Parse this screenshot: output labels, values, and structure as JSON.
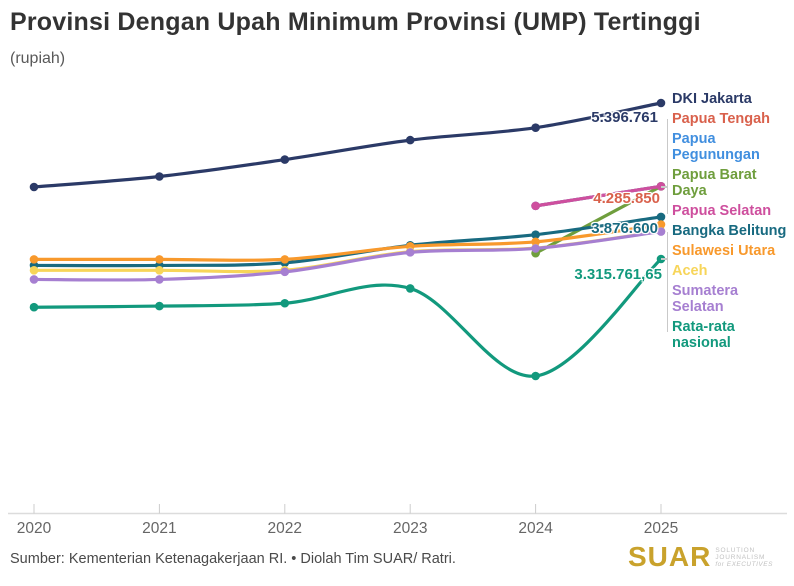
{
  "header": {
    "title": "Provinsi Dengan Upah Minimum Provinsi (UMP) Tertinggi",
    "subtitle": "(rupiah)"
  },
  "chart_data": {
    "type": "line",
    "unit": "rupiah",
    "x": [
      2020,
      2021,
      2022,
      2023,
      2024,
      2025
    ],
    "x_tick_labels": [
      "2020",
      "2021",
      "2022",
      "2023",
      "2024",
      "2025"
    ],
    "grid": false,
    "legend_position": "right",
    "ylim": [
      1600000,
      5600000
    ],
    "series": [
      {
        "name": "DKI Jakarta",
        "color": "#2b3a67",
        "lines": [
          "DKI Jakarta"
        ],
        "values": [
          4276349,
          4416186,
          4641854,
          4901798,
          5067381,
          5396761
        ]
      },
      {
        "name": "Papua Tengah",
        "color": "#d9614c",
        "lines": [
          "Papua Tengah"
        ],
        "values": [
          null,
          null,
          null,
          null,
          4024270,
          4285850
        ]
      },
      {
        "name": "Papua Pegunungan",
        "color": "#418fdf",
        "lines": [
          "Papua",
          "Pegunungan"
        ],
        "values": [
          null,
          null,
          null,
          null,
          4024270,
          4285850
        ]
      },
      {
        "name": "Papua Barat Daya",
        "color": "#6f9e3d",
        "lines": [
          "Papua Barat",
          "Daya"
        ],
        "values": [
          null,
          null,
          null,
          null,
          3393500,
          4285850
        ]
      },
      {
        "name": "Papua Selatan",
        "color": "#ce4f9e",
        "lines": [
          "Papua Selatan"
        ],
        "values": [
          null,
          null,
          null,
          null,
          4024270,
          4285850
        ]
      },
      {
        "name": "Bangka Belitung",
        "color": "#186a80",
        "lines": [
          "Bangka Belitung"
        ],
        "values": [
          3230023,
          3230023,
          3264884,
          3498479,
          3640000,
          3876600
        ]
      },
      {
        "name": "Sulawesi Utara",
        "color": "#f8992c",
        "lines": [
          "Sulawesi Utara"
        ],
        "values": [
          3310723,
          3310723,
          3310723,
          3485000,
          3545000,
          3775425
        ]
      },
      {
        "name": "Aceh",
        "color": "#f7d559",
        "lines": [
          "Aceh"
        ],
        "values": [
          3165031,
          3165031,
          3166460,
          3413666,
          3460672,
          3685616
        ]
      },
      {
        "name": "Sumatera Selatan",
        "color": "#a67fd1",
        "lines": [
          "Sumatera",
          "Selatan"
        ],
        "values": [
          3043111,
          3043111,
          3144446,
          3404177,
          3456874,
          3681571
        ]
      },
      {
        "name": "Rata-rata nasional",
        "color": "#12997d",
        "lines": [
          "Rata-rata",
          "nasional"
        ],
        "values": [
          2672371,
          2687724,
          2725505,
          2923309,
          1754941,
          3315761.65
        ]
      }
    ],
    "annotations": [
      {
        "series": "DKI Jakarta",
        "text": "5.396.761",
        "color": "#2b3a67"
      },
      {
        "series": "Papua Selatan",
        "text": "4.285.850",
        "color": "#d9614c"
      },
      {
        "series": "Bangka Belitung",
        "text": "3.876.600",
        "color": "#186a80"
      },
      {
        "series": "Rata-rata nasional",
        "text": "3.315.761,65",
        "color": "#12997d"
      }
    ]
  },
  "footer": {
    "source": "Sumber: Kementerian Ketenagakerjaan RI. • Diolah Tim SUAR/ Ratri.",
    "logo": {
      "text": "SUAR",
      "tagline_line1": "SOLUTION JOURNALISM",
      "tagline_line2": "for EXECUTIVES"
    }
  }
}
